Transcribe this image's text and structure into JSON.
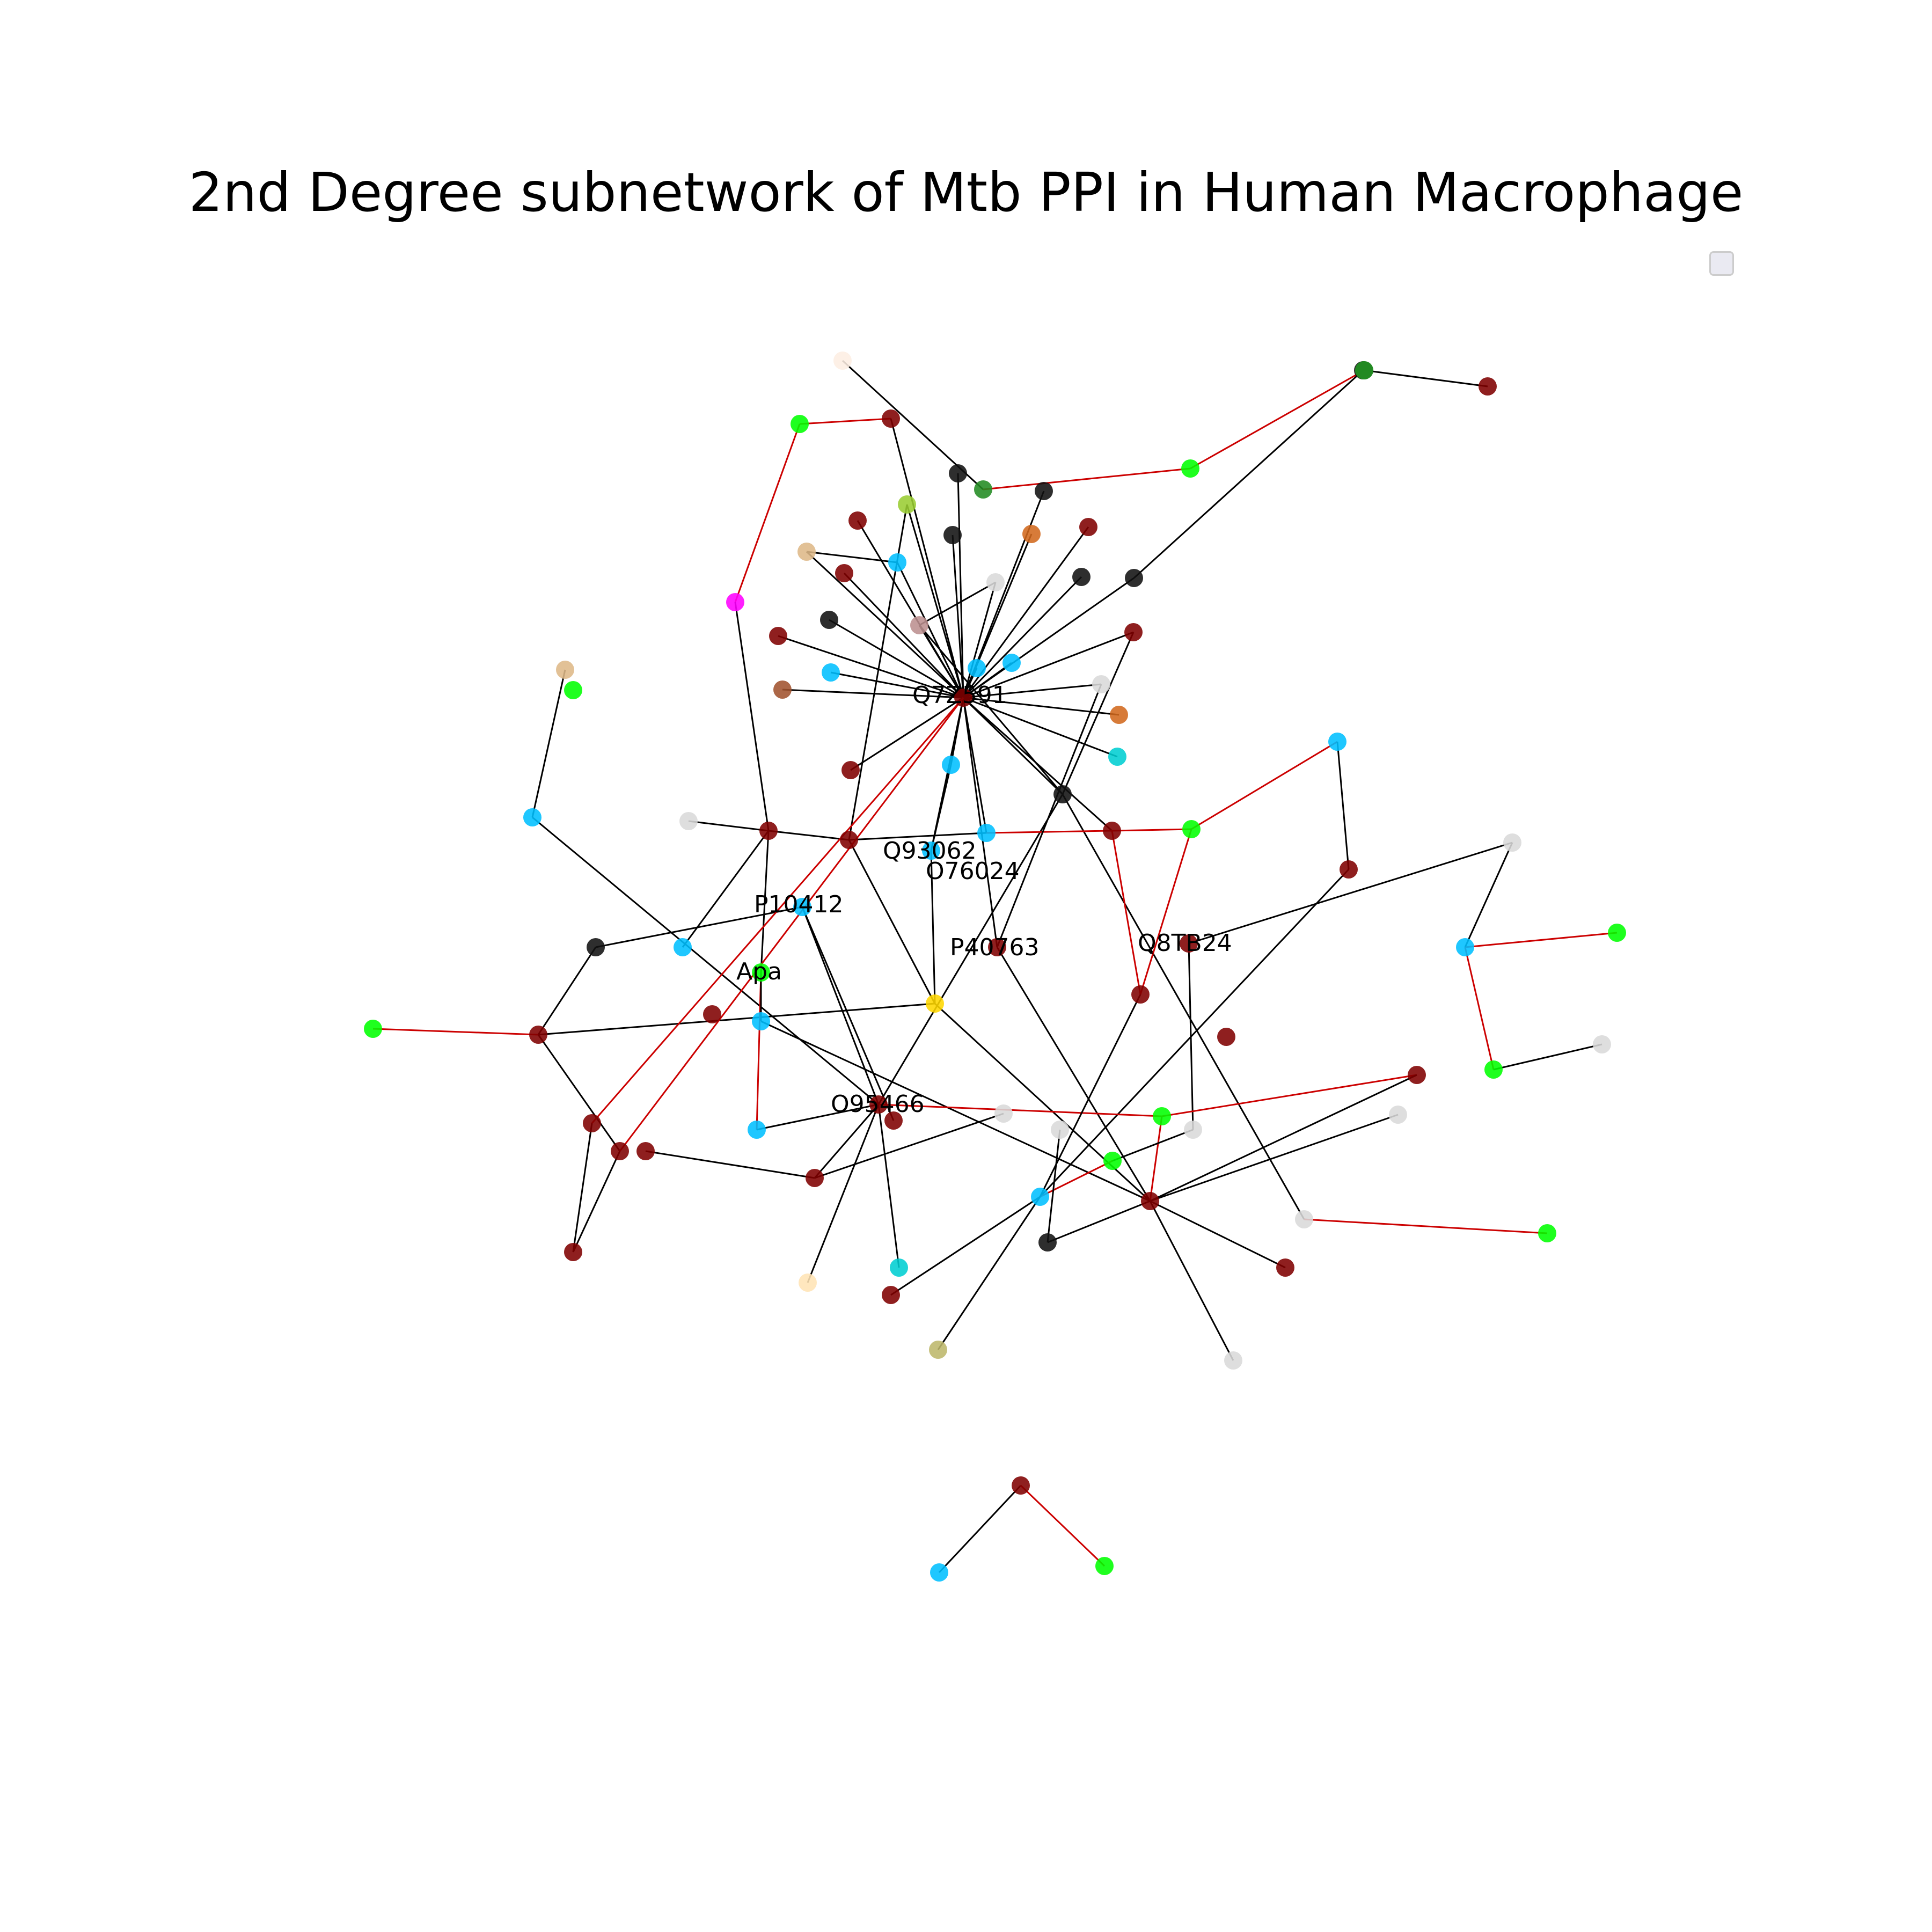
{
  "title": "2nd Degree subnetwork of Mtb PPI in Human Macrophage",
  "colors": {
    "edge_default": "#000000",
    "edge_highlight": "#cc0000",
    "node_maroon": "#800000",
    "node_cyan": "#00bfff",
    "node_lime": "#00ff00",
    "node_black": "#111111",
    "node_gray": "#d9d9d9",
    "node_green": "#228b22",
    "node_orange": "#d2691e",
    "node_tan": "#deb887",
    "node_teal": "#00ced1",
    "node_magenta": "#ff00ff",
    "node_gold": "#ffd700"
  },
  "labels": {
    "hub": "Q7Z591",
    "q93062": "Q93062",
    "o76024": "O76024",
    "p10412": "P10412",
    "p40763": "P40763",
    "q8tb24": "Q8TB24",
    "apa": "Apa",
    "o95466": "O95466"
  },
  "legend": {
    "entries": []
  }
}
